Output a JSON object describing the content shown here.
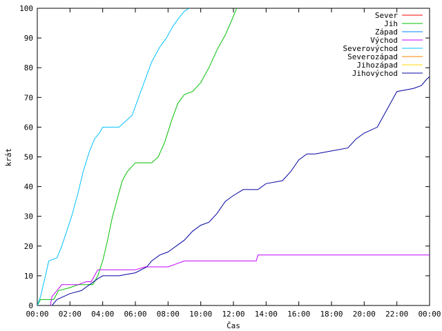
{
  "chart_data": {
    "type": "line",
    "xlabel": "Čas",
    "ylabel": "krát",
    "ylim": [
      0,
      100
    ],
    "yticks": [
      0,
      10,
      20,
      30,
      40,
      50,
      60,
      70,
      80,
      90,
      100
    ],
    "xlim_hours": [
      0,
      24
    ],
    "xticks": [
      "00:00",
      "02:00",
      "04:00",
      "06:00",
      "08:00",
      "10:00",
      "12:00",
      "14:00",
      "16:00",
      "18:00",
      "20:00",
      "22:00",
      "00:00"
    ],
    "grid": false,
    "legend_position": "top-right",
    "series": [
      {
        "name": "Sever",
        "color": "#ff0000",
        "points": []
      },
      {
        "name": "Jih",
        "color": "#00c000",
        "points": [
          [
            0,
            0
          ],
          [
            0.2,
            2
          ],
          [
            1.0,
            2
          ],
          [
            1.3,
            5
          ],
          [
            2.0,
            6
          ],
          [
            2.5,
            7
          ],
          [
            3.4,
            7
          ],
          [
            3.7,
            10
          ],
          [
            4.0,
            15
          ],
          [
            4.3,
            22
          ],
          [
            4.6,
            30
          ],
          [
            4.9,
            36
          ],
          [
            5.2,
            42
          ],
          [
            5.5,
            45
          ],
          [
            6.0,
            48
          ],
          [
            6.5,
            48
          ],
          [
            7.0,
            48
          ],
          [
            7.4,
            50
          ],
          [
            7.8,
            55
          ],
          [
            8.2,
            62
          ],
          [
            8.6,
            68
          ],
          [
            9.0,
            71
          ],
          [
            9.5,
            72
          ],
          [
            10.0,
            75
          ],
          [
            10.5,
            80
          ],
          [
            11.0,
            86
          ],
          [
            11.5,
            91
          ],
          [
            11.9,
            96
          ],
          [
            12.2,
            100
          ]
        ]
      },
      {
        "name": "Západ",
        "color": "#0080ff",
        "points": []
      },
      {
        "name": "Východ",
        "color": "#c000ff",
        "points": [
          [
            0.8,
            0
          ],
          [
            0.9,
            3
          ],
          [
            1.2,
            5
          ],
          [
            1.5,
            7
          ],
          [
            2.0,
            7
          ],
          [
            2.5,
            7
          ],
          [
            3.0,
            8
          ],
          [
            3.3,
            8
          ],
          [
            3.5,
            10
          ],
          [
            3.7,
            12
          ],
          [
            4.5,
            12
          ],
          [
            5.5,
            12
          ],
          [
            6.0,
            12
          ],
          [
            6.6,
            13
          ],
          [
            7.5,
            13
          ],
          [
            8.0,
            13
          ],
          [
            8.5,
            14
          ],
          [
            9.0,
            15
          ],
          [
            10.0,
            15
          ],
          [
            12.0,
            15
          ],
          [
            13.4,
            15
          ],
          [
            13.5,
            17
          ],
          [
            16.0,
            17
          ],
          [
            20.0,
            17
          ],
          [
            24.0,
            17
          ]
        ]
      },
      {
        "name": "Severovýchod",
        "color": "#00c0ff",
        "points": [
          [
            0,
            0
          ],
          [
            0.2,
            3
          ],
          [
            0.5,
            10
          ],
          [
            0.7,
            15
          ],
          [
            1.2,
            16
          ],
          [
            1.5,
            20
          ],
          [
            1.8,
            25
          ],
          [
            2.1,
            30
          ],
          [
            2.5,
            38
          ],
          [
            2.8,
            45
          ],
          [
            3.2,
            52
          ],
          [
            3.5,
            56
          ],
          [
            3.8,
            58
          ],
          [
            4.0,
            60
          ],
          [
            4.5,
            60
          ],
          [
            5.0,
            60
          ],
          [
            5.4,
            62
          ],
          [
            5.8,
            64
          ],
          [
            6.2,
            70
          ],
          [
            6.6,
            76
          ],
          [
            7.0,
            82
          ],
          [
            7.5,
            87
          ],
          [
            7.9,
            90
          ],
          [
            8.3,
            94
          ],
          [
            8.7,
            97
          ],
          [
            9.0,
            99
          ],
          [
            9.3,
            100
          ]
        ]
      },
      {
        "name": "Severozápad",
        "color": "#ff8000",
        "points": []
      },
      {
        "name": "Jihozápad",
        "color": "#ffd700",
        "points": []
      },
      {
        "name": "Jihovýchod",
        "color": "#0000a0",
        "points": [
          [
            0.9,
            0
          ],
          [
            1.2,
            2
          ],
          [
            2.0,
            4
          ],
          [
            2.7,
            5
          ],
          [
            3.2,
            7
          ],
          [
            3.7,
            9
          ],
          [
            4.0,
            10
          ],
          [
            5.0,
            10
          ],
          [
            6.0,
            11
          ],
          [
            6.7,
            13
          ],
          [
            7.0,
            15
          ],
          [
            7.5,
            17
          ],
          [
            8.0,
            18
          ],
          [
            8.5,
            20
          ],
          [
            9.0,
            22
          ],
          [
            9.5,
            25
          ],
          [
            10.0,
            27
          ],
          [
            10.5,
            28
          ],
          [
            11.0,
            31
          ],
          [
            11.5,
            35
          ],
          [
            12.0,
            37
          ],
          [
            12.6,
            39
          ],
          [
            13.5,
            39
          ],
          [
            14.0,
            41
          ],
          [
            15.0,
            42
          ],
          [
            15.5,
            45
          ],
          [
            16.0,
            49
          ],
          [
            16.5,
            51
          ],
          [
            17.0,
            51
          ],
          [
            18.0,
            52
          ],
          [
            19.0,
            53
          ],
          [
            19.5,
            56
          ],
          [
            20.0,
            58
          ],
          [
            20.8,
            60
          ],
          [
            21.2,
            64
          ],
          [
            21.7,
            69
          ],
          [
            22.0,
            72
          ],
          [
            23.0,
            73
          ],
          [
            23.5,
            74
          ],
          [
            23.8,
            76
          ],
          [
            24.0,
            77
          ]
        ]
      }
    ]
  }
}
